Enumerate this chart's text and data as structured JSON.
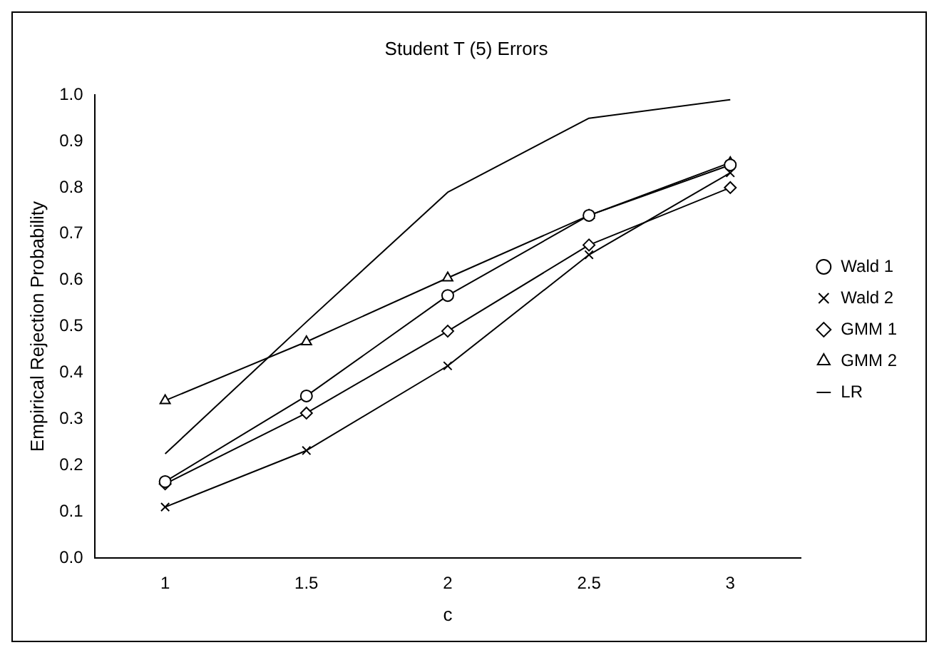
{
  "chart_data": {
    "type": "line",
    "title": "Student T (5) Errors",
    "xlabel": "c",
    "ylabel": "Empirical Rejection Probability",
    "categories": [
      "1",
      "1.5",
      "2",
      "2.5",
      "3"
    ],
    "ylim": [
      0,
      1
    ],
    "yticks": [
      {
        "value": 0,
        "label": "0.0"
      },
      0.1,
      0.2,
      0.3,
      0.4,
      0.5,
      0.6,
      0.7,
      0.8,
      0.9,
      {
        "value": 1,
        "label": "1.0"
      }
    ],
    "grid": false,
    "legend": "right",
    "series": [
      {
        "name": "Wald 1",
        "color": "#000000",
        "marker": "circle",
        "values": [
          0.165,
          0.35,
          0.567,
          0.74,
          0.849
        ]
      },
      {
        "name": "Wald 2",
        "color": "#000000",
        "marker": "cross",
        "values": [
          0.11,
          0.232,
          0.415,
          0.655,
          0.832
        ]
      },
      {
        "name": "GMM 1",
        "color": "#000000",
        "marker": "diamond",
        "values": [
          0.16,
          0.313,
          0.49,
          0.676,
          0.8
        ]
      },
      {
        "name": "GMM 2",
        "color": "#000000",
        "marker": "triangle",
        "values": [
          0.34,
          0.467,
          0.605,
          0.74,
          0.854
        ]
      },
      {
        "name": "LR",
        "color": "#000000",
        "marker": "none",
        "values": [
          0.225,
          0.51,
          0.79,
          0.95,
          0.99
        ]
      }
    ]
  }
}
